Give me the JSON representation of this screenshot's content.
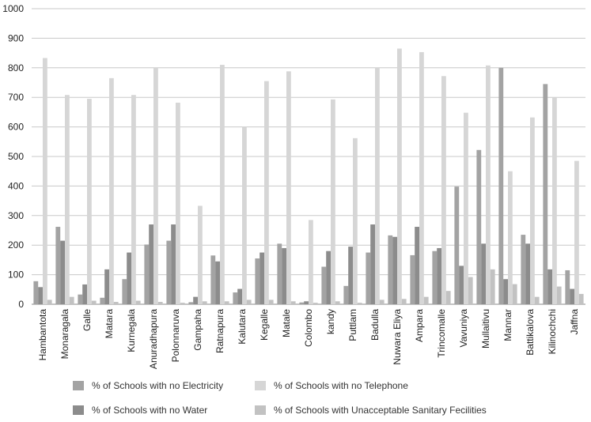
{
  "chart_data": {
    "type": "bar",
    "title": "",
    "xlabel": "",
    "ylabel": "",
    "ylim": [
      0,
      1000
    ],
    "yticks": [
      "0",
      "100",
      "200",
      "300",
      "400",
      "500",
      "600",
      "700",
      "800",
      "900",
      "1000"
    ],
    "grid": true,
    "legend_position": "bottom",
    "categories": [
      "Hambantota",
      "Monaragala",
      "Galle",
      "Matara",
      "Kurnegala",
      "Anuradhapura",
      "Polonnaruva",
      "Gampaha",
      "Ratnapura",
      "Kalutara",
      "Kegalle",
      "Matale",
      "Colombo",
      "kandy",
      "Puttlam",
      "Badulla",
      "Nuwara Eliya",
      "Ampara",
      "Trincomalle",
      "Vavuniya",
      "Mullaitivu",
      "Mannar",
      "Battikalova",
      "Kilinochchi",
      "Jaffna"
    ],
    "series": [
      {
        "name": "% of Schools with no Electricity",
        "color": "#a3a3a3",
        "values": [
          78,
          262,
          33,
          22,
          85,
          202,
          215,
          7,
          165,
          40,
          155,
          205,
          6,
          127,
          62,
          175,
          233,
          166,
          180,
          398,
          522,
          800,
          235,
          745,
          115
        ]
      },
      {
        "name": "% of Schools with no Water",
        "color": "#8c8c8c",
        "values": [
          58,
          215,
          67,
          118,
          175,
          270,
          270,
          25,
          145,
          52,
          175,
          190,
          10,
          180,
          195,
          270,
          228,
          262,
          190,
          130,
          205,
          85,
          205,
          118,
          52
        ]
      },
      {
        "name": "% of Schools with no Telephone",
        "color": "#d6d6d6",
        "values": [
          833,
          708,
          695,
          765,
          708,
          800,
          682,
          333,
          810,
          600,
          755,
          788,
          285,
          693,
          562,
          800,
          865,
          853,
          772,
          648,
          808,
          450,
          632,
          700,
          485
        ]
      },
      {
        "name": "% of Schools with Unacceptable Sanitary Fecilities",
        "color": "#c2c2c2",
        "values": [
          15,
          25,
          12,
          8,
          12,
          8,
          5,
          10,
          10,
          15,
          15,
          10,
          5,
          10,
          5,
          15,
          18,
          25,
          45,
          92,
          118,
          68,
          25,
          60,
          35
        ]
      }
    ]
  }
}
